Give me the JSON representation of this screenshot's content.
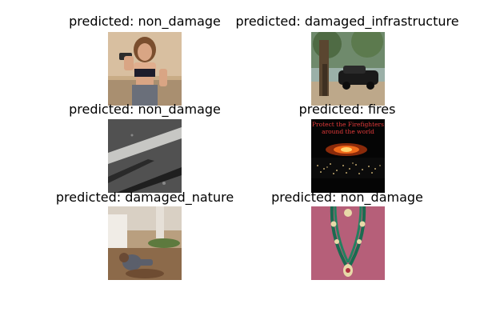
{
  "panels": [
    {
      "title": "predicted: non_damage",
      "image": "woman-with-dumbbell-photo"
    },
    {
      "title": "predicted: damaged_infrastructure",
      "image": "car-under-tree-photo"
    },
    {
      "title": "predicted: non_damage",
      "image": "road-markings-photo"
    },
    {
      "title": "predicted: fires",
      "image": "wildfire-night-photo",
      "caption": "Protect the Firefighters around the world"
    },
    {
      "title": "predicted: damaged_nature",
      "image": "digging-earth-photo"
    },
    {
      "title": "predicted: non_damage",
      "image": "green-necklace-photo"
    }
  ]
}
